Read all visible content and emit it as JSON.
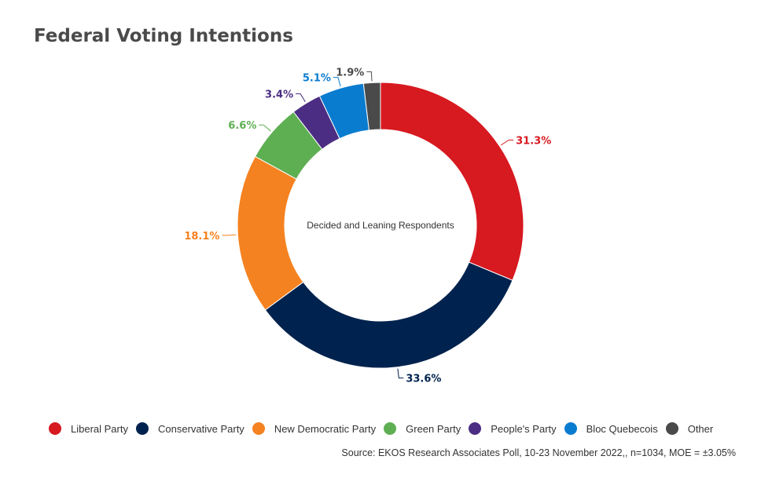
{
  "title": "Federal Voting Intentions",
  "source": "Source: EKOS Research Associates Poll, 10-23 November 2022,, n=1034, MOE = ±3.05%",
  "chart_data": {
    "type": "pie",
    "style": "donut",
    "center_label": "Decided and Leaning Respondents",
    "legend_position": "bottom",
    "slices": [
      {
        "name": "Liberal Party",
        "value": 31.3,
        "label": "31.3%",
        "color": "#d71920"
      },
      {
        "name": "Conservative Party",
        "value": 33.6,
        "label": "33.6%",
        "color": "#00224e"
      },
      {
        "name": "New Democratic Party",
        "value": 18.1,
        "label": "18.1%",
        "color": "#f58220"
      },
      {
        "name": "Green Party",
        "value": 6.6,
        "label": "6.6%",
        "color": "#5eaf52"
      },
      {
        "name": "People's Party",
        "value": 3.4,
        "label": "3.4%",
        "color": "#4b2e83"
      },
      {
        "name": "Bloc Quebecois",
        "value": 5.1,
        "label": "5.1%",
        "color": "#0a7ccf"
      },
      {
        "name": "Other",
        "value": 1.9,
        "label": "1.9%",
        "color": "#4a4a4a"
      }
    ]
  }
}
